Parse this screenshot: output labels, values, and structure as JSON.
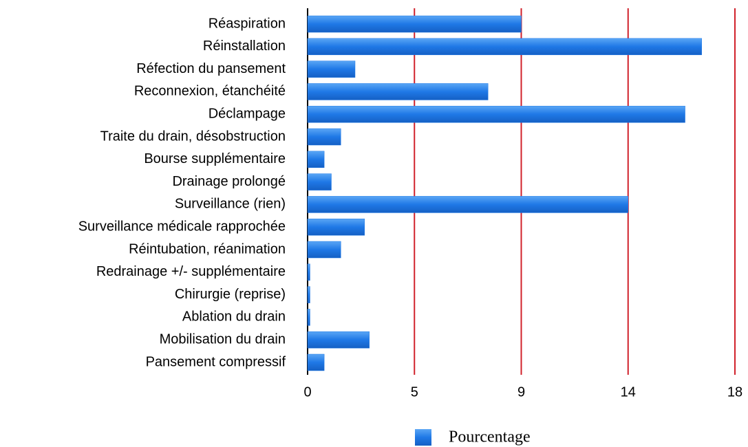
{
  "chart_data": {
    "type": "barh",
    "categories": [
      "Réaspiration",
      "Réinstallation",
      "Réfection du pansement",
      "Reconnexion, étanchéité",
      "Déclampage",
      "Traite du drain, désobstruction",
      "Bourse supplémentaire",
      "Drainage prolongé",
      "Surveillance (rien)",
      "Surveillance médicale rapprochée ",
      "Réintubation, réanimation",
      "Redrainage +/- supplémentaire",
      "Chirurgie (reprise)",
      "Ablation du drain",
      "Mobilisation du drain",
      "Pansement compressif"
    ],
    "series": [
      {
        "name": "Pourcentage",
        "color": "#1f78e6",
        "values": [
          9.0,
          16.6,
          2.0,
          7.6,
          15.9,
          1.4,
          0.7,
          1.0,
          13.5,
          2.4,
          1.4,
          0.1,
          0.1,
          0.1,
          2.6,
          0.7
        ]
      }
    ],
    "xlim": [
      0,
      18
    ],
    "xticks": [
      0,
      {
        "value": 4.5,
        "label": "5"
      },
      9,
      {
        "value": 13.5,
        "label": "14"
      },
      18
    ],
    "grid": true,
    "grid_color": "#d0202a",
    "legend": "bottom"
  }
}
